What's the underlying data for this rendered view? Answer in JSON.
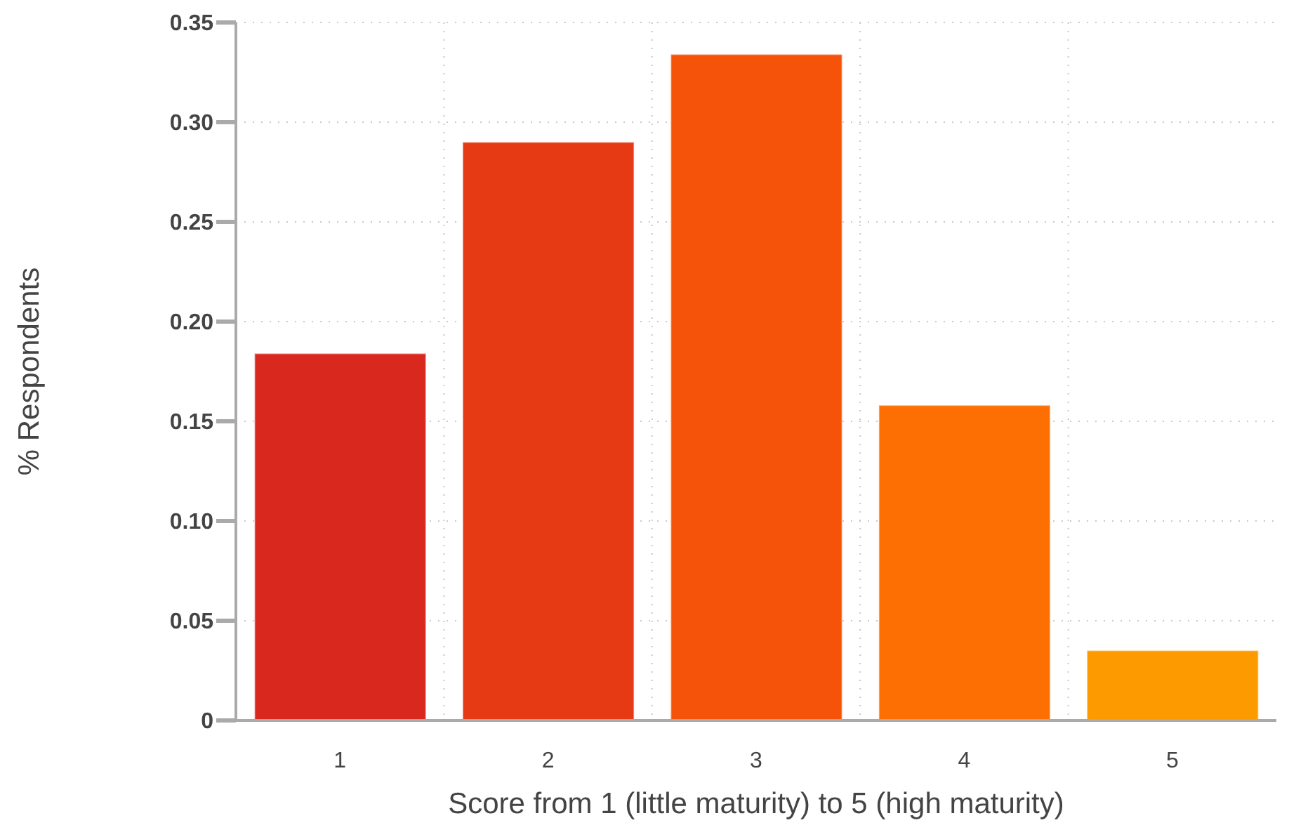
{
  "chart_data": {
    "type": "bar",
    "xlabel": "Score from 1 (little maturity) to 5 (high maturity)",
    "ylabel": "% Respondents",
    "categories": [
      "1",
      "2",
      "3",
      "4",
      "5"
    ],
    "values": [
      0.184,
      0.29,
      0.334,
      0.158,
      0.035
    ],
    "colors": [
      "#d9281e",
      "#e63a14",
      "#f5520a",
      "#fd6f02",
      "#fd9a00"
    ],
    "ylim": [
      0,
      0.35
    ],
    "yticks": [
      {
        "value": 0,
        "label": "0"
      },
      {
        "value": 0.05,
        "label": "0.05"
      },
      {
        "value": 0.1,
        "label": "0.10"
      },
      {
        "value": 0.15,
        "label": "0.15"
      },
      {
        "value": 0.2,
        "label": "0.20"
      },
      {
        "value": 0.25,
        "label": "0.25"
      },
      {
        "value": 0.3,
        "label": "0.30"
      },
      {
        "value": 0.35,
        "label": "0.35"
      }
    ],
    "grid": true
  }
}
